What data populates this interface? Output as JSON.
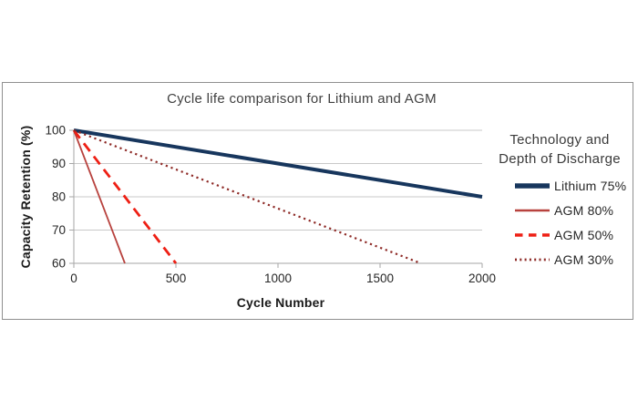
{
  "chart_data": {
    "type": "line",
    "title": "Cycle life comparison for Lithium and AGM",
    "xlabel": "Cycle Number",
    "ylabel": "Capacity Retention (%)",
    "legend_title": [
      "Technology and",
      "Depth of Discharge"
    ],
    "legend_position": "right",
    "xlim": [
      0,
      2000
    ],
    "ylim": [
      60,
      100
    ],
    "xticks": [
      0,
      500,
      1000,
      1500,
      2000
    ],
    "yticks": [
      60,
      70,
      80,
      90,
      100
    ],
    "grid": "horizontal",
    "colors": {
      "grid": "#c9c9c9",
      "axis": "#a6a6a6",
      "frame": "#8f8f8f",
      "title_text": "#404040",
      "axis_title_text": "#1a1a1a",
      "tick_text": "#262626"
    },
    "series": [
      {
        "name": "Lithium 75%",
        "color": "#17365d",
        "style": "solid",
        "width": 4,
        "points": [
          [
            0,
            100
          ],
          [
            2000,
            80
          ]
        ]
      },
      {
        "name": "AGM 80%",
        "color": "#b8423e",
        "style": "solid",
        "width": 1.8,
        "points": [
          [
            0,
            100
          ],
          [
            250,
            60
          ]
        ]
      },
      {
        "name": "AGM 50%",
        "color": "#ee1f14",
        "style": "dashed",
        "width": 2.8,
        "points": [
          [
            0,
            100
          ],
          [
            500,
            60
          ]
        ]
      },
      {
        "name": "AGM 30%",
        "color": "#8e2a26",
        "style": "dotted",
        "width": 2.2,
        "points": [
          [
            0,
            100
          ],
          [
            1700,
            60
          ]
        ]
      }
    ]
  }
}
